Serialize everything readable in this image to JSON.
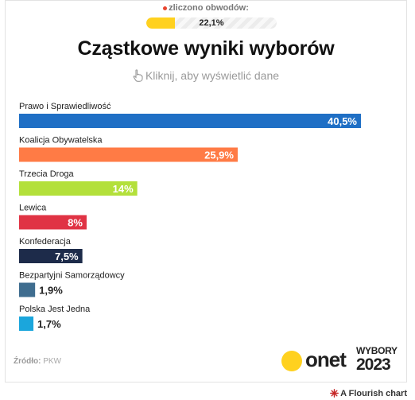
{
  "header": {
    "counted_label": "zliczono obwodów:",
    "progress_value": 22.1,
    "progress_text": "22,1%",
    "progress_color": "#ffd11f",
    "hint": "Kliknij, aby wyświetlić dane",
    "hint_icon": "pointing-hand-icon"
  },
  "footer": {
    "source_label": "Źródło:",
    "source_value": "PKW",
    "onet_text": "onet",
    "wybory_text": "WYBORY",
    "wybory_year": "2023",
    "flourish_text": "A Flourish chart",
    "flourish_icon": "flourish-star-icon"
  },
  "chart_data": {
    "type": "bar",
    "orientation": "horizontal",
    "title": "Cząstkowe wyniki wyborów",
    "xlim": [
      0,
      40.5
    ],
    "grid": false,
    "categories": [
      "Prawo i Sprawiedliwość",
      "Koalicja Obywatelska",
      "Trzecia Droga",
      "Lewica",
      "Konfederacja",
      "Bezpartyjni Samorządowcy",
      "Polska Jest Jedna"
    ],
    "values": [
      40.5,
      25.9,
      14,
      8,
      7.5,
      1.9,
      1.7
    ],
    "value_labels": [
      "40,5%",
      "25,9%",
      "14%",
      "8%",
      "7,5%",
      "1,9%",
      "1,7%"
    ],
    "colors": [
      "#1f6fc5",
      "#ff7b45",
      "#b3e03b",
      "#e03344",
      "#1d2b4a",
      "#3f6d8f",
      "#1ba6dc"
    ]
  }
}
